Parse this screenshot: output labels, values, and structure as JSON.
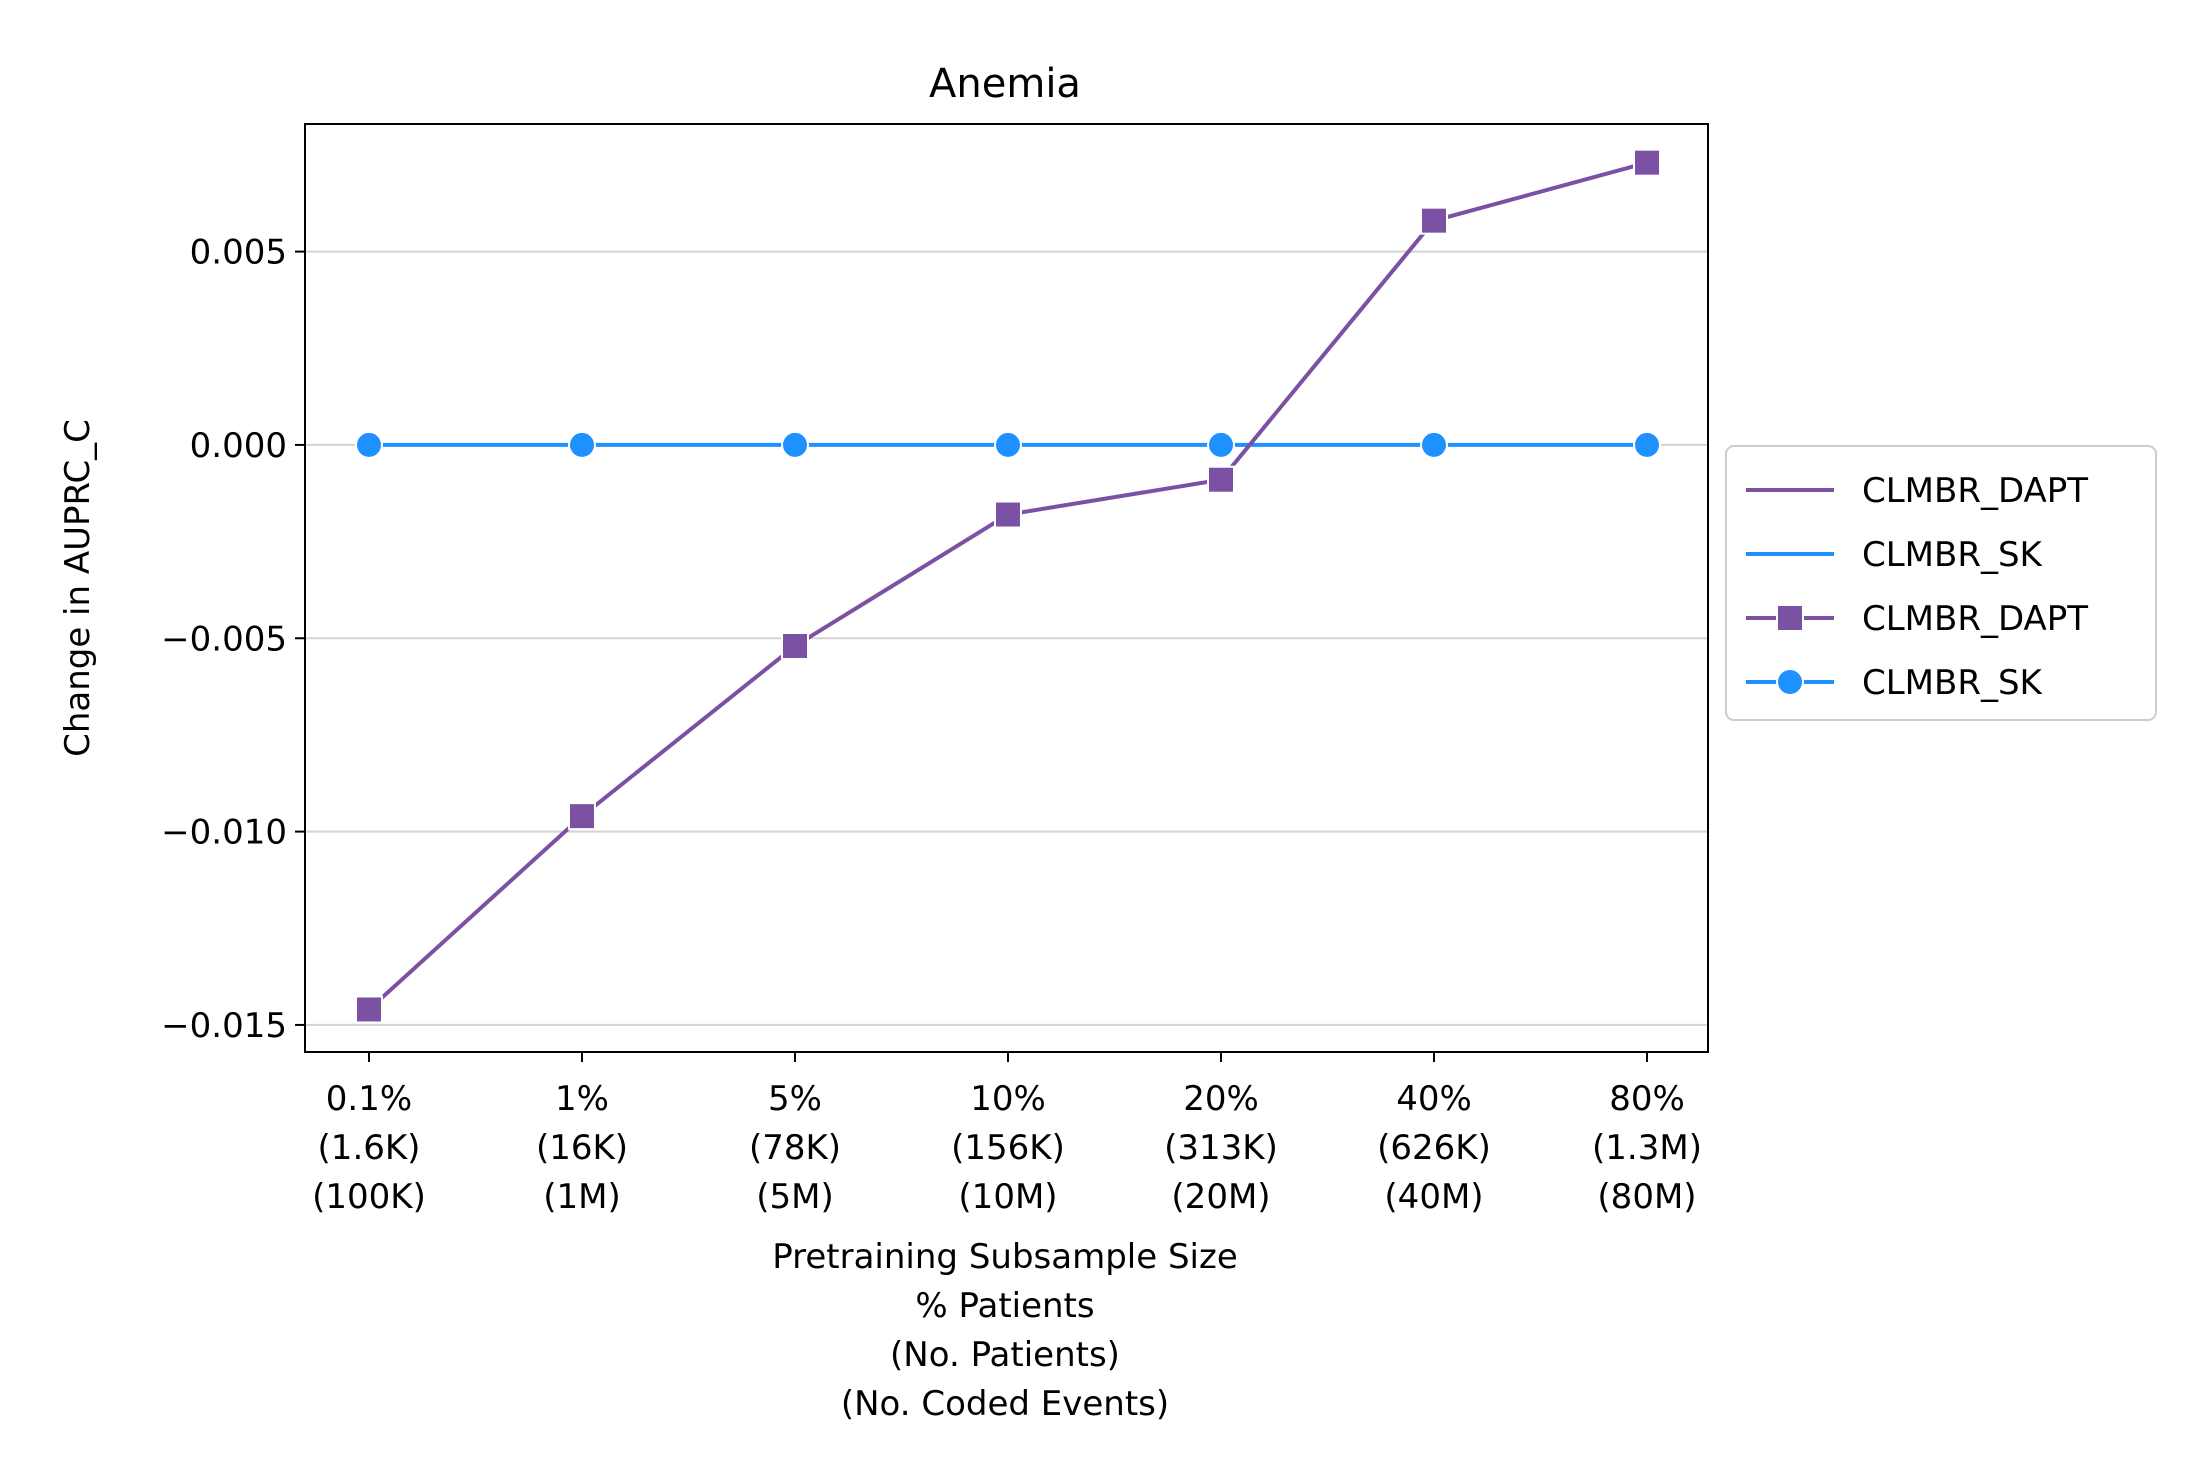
{
  "chart_data": {
    "type": "line",
    "title": "Anemia",
    "xlabel": [
      "Pretraining Subsample Size",
      "% Patients",
      "(No. Patients)",
      "(No. Coded Events)"
    ],
    "ylabel": "Change in AUPRC_C",
    "categories": [
      [
        "0.1%",
        "(1.6K)",
        "(100K)"
      ],
      [
        "1%",
        "(16K)",
        "(1M)"
      ],
      [
        "5%",
        "(78K)",
        "(5M)"
      ],
      [
        "10%",
        "(156K)",
        "(10M)"
      ],
      [
        "20%",
        "(313K)",
        "(20M)"
      ],
      [
        "40%",
        "(626K)",
        "(40M)"
      ],
      [
        "80%",
        "(1.3M)",
        "(80M)"
      ]
    ],
    "yticks": [
      0.005,
      0.0,
      -0.005,
      -0.01,
      -0.015
    ],
    "ytick_labels": [
      "0.005",
      "0.000",
      "−0.005",
      "−0.010",
      "−0.015"
    ],
    "ylim": [
      -0.0157,
      0.0083
    ],
    "grid": "horizontal",
    "legend_placement": "right, outside plot",
    "series": [
      {
        "name": "CLMBR_DAPT",
        "color": "#7b52a3",
        "marker": "square",
        "values": [
          -0.0146,
          -0.0096,
          -0.0052,
          -0.0018,
          -0.0009,
          0.0058,
          0.0073
        ]
      },
      {
        "name": "CLMBR_SK",
        "color": "#1e90ff",
        "marker": "circle",
        "values": [
          0.0,
          0.0,
          0.0,
          0.0,
          0.0,
          0.0,
          0.0
        ]
      }
    ],
    "legend": [
      {
        "label": "CLMBR_DAPT",
        "series": 0,
        "style": "line"
      },
      {
        "label": "CLMBR_SK",
        "series": 1,
        "style": "line"
      },
      {
        "label": "CLMBR_DAPT",
        "series": 0,
        "style": "line-marker"
      },
      {
        "label": "CLMBR_SK",
        "series": 1,
        "style": "line-marker"
      }
    ]
  }
}
